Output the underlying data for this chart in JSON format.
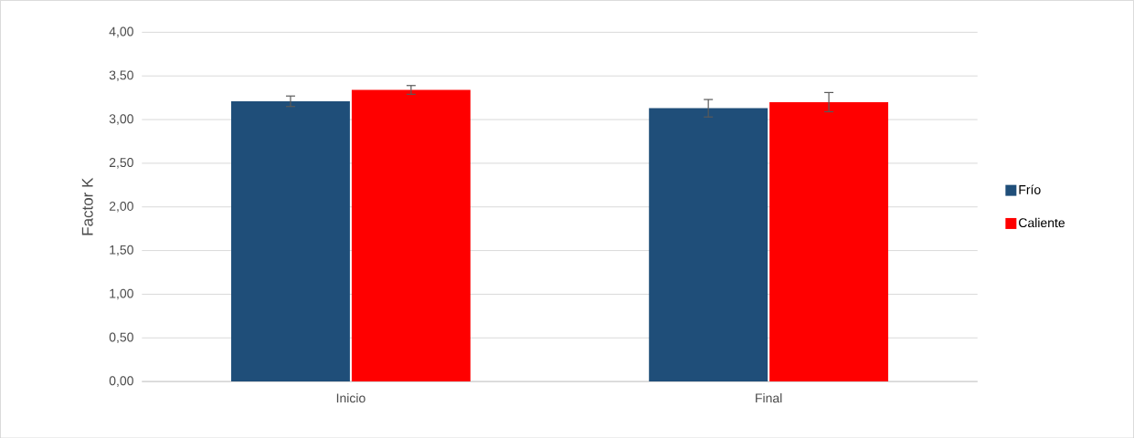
{
  "chart_data": {
    "type": "bar",
    "ylabel": "Factor K",
    "categories": [
      "Inicio",
      "Final"
    ],
    "series": [
      {
        "name": "Frío",
        "color": "#1f4e79",
        "values": [
          3.21,
          3.13
        ],
        "errors": [
          0.06,
          0.1
        ]
      },
      {
        "name": "Caliente",
        "color": "#ff0000",
        "values": [
          3.34,
          3.2
        ],
        "errors": [
          0.05,
          0.11
        ]
      }
    ],
    "ylim": [
      0,
      4
    ],
    "yticks": [
      {
        "value": 0,
        "label": "0,00"
      },
      {
        "value": 0.5,
        "label": "0,50"
      },
      {
        "value": 1,
        "label": "1,00"
      },
      {
        "value": 1.5,
        "label": "1,50"
      },
      {
        "value": 2,
        "label": "2,00"
      },
      {
        "value": 2.5,
        "label": "2,50"
      },
      {
        "value": 3,
        "label": "3,00"
      },
      {
        "value": 3.5,
        "label": "3,50"
      },
      {
        "value": 4,
        "label": "4,00"
      }
    ],
    "grid": "y",
    "legend": "right"
  }
}
